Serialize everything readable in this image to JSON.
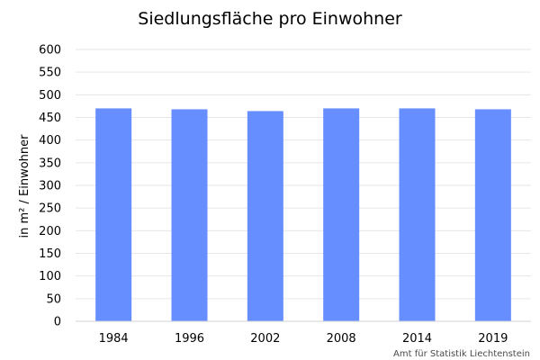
{
  "chart_data": {
    "type": "bar",
    "title": "Siedlungsfläche pro Einwohner",
    "xlabel": "",
    "ylabel": "in m² / Einwohner",
    "categories": [
      "1984",
      "1996",
      "2002",
      "2008",
      "2014",
      "2019"
    ],
    "values": [
      470,
      468,
      464,
      470,
      470,
      468
    ],
    "ylim": [
      0,
      600
    ],
    "yticks": [
      "0",
      "50",
      "100",
      "150",
      "200",
      "250",
      "300",
      "350",
      "400",
      "450",
      "500",
      "550",
      "600"
    ],
    "grid": true,
    "legend": "none",
    "bar_color": "#668eff"
  },
  "credit": "Amt für Statistik Liechtenstein"
}
